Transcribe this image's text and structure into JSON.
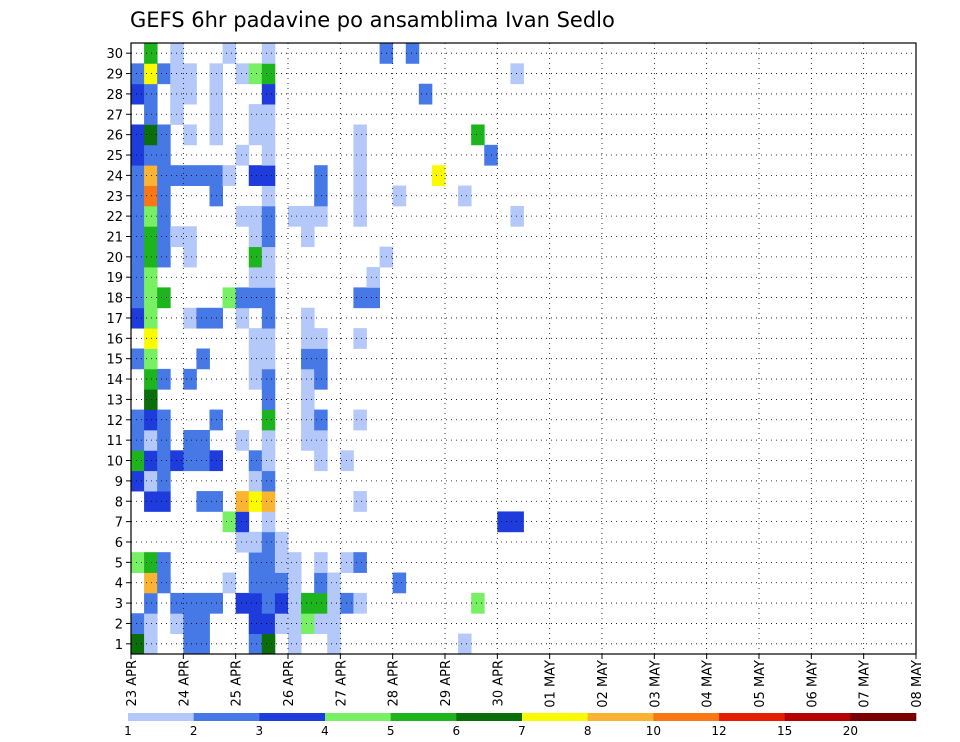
{
  "chart_data": {
    "type": "heatmap",
    "title": "GEFS 6hr padavine po ansamblima Ivan Sedlo",
    "xlabel": "",
    "ylabel": "",
    "x_tick_labels": [
      "23 APR",
      "24 APR",
      "25 APR",
      "26 APR",
      "27 APR",
      "28 APR",
      "29 APR",
      "30 APR",
      "01 MAY",
      "02 MAY",
      "03 MAY",
      "04 MAY",
      "05 MAY",
      "06 MAY",
      "07 MAY",
      "08 MAY"
    ],
    "y_tick_labels": [
      "1",
      "2",
      "3",
      "4",
      "5",
      "6",
      "7",
      "8",
      "9",
      "10",
      "11",
      "12",
      "13",
      "14",
      "15",
      "16",
      "17",
      "18",
      "19",
      "20",
      "21",
      "22",
      "23",
      "24",
      "25",
      "26",
      "27",
      "28",
      "29",
      "30"
    ],
    "x_range": [
      0,
      60
    ],
    "y_range": [
      0.5,
      30.5
    ],
    "grid": true,
    "legend": {
      "placement": "bottom",
      "labels": [
        "1",
        "2",
        "3",
        "4",
        "5",
        "6",
        "7",
        "8",
        "10",
        "12",
        "15",
        "20"
      ],
      "colors": [
        "#b4c8fa",
        "#4678e6",
        "#1e3cdc",
        "#78f064",
        "#1eb41e",
        "#0a6e0a",
        "#fafa00",
        "#fab432",
        "#fa7814",
        "#e61e00",
        "#b40000",
        "#780000"
      ]
    },
    "colors": [
      "#b4c8fa",
      "#4678e6",
      "#1e3cdc",
      "#78f064",
      "#1eb41e",
      "#0a6e0a",
      "#fafa00",
      "#fab432",
      "#fa7814",
      "#e61e00",
      "#b40000",
      "#780000"
    ],
    "cells": [
      [
        1,
        1,
        5
      ],
      [
        1,
        2,
        1
      ],
      [
        1,
        5,
        3
      ],
      [
        1,
        9,
        2
      ],
      [
        1,
        10,
        4
      ],
      [
        1,
        11,
        1
      ],
      [
        1,
        12,
        1
      ],
      [
        1,
        15,
        1
      ],
      [
        1,
        17,
        2
      ],
      [
        1,
        18,
        1
      ],
      [
        1,
        19,
        1
      ],
      [
        1,
        20,
        1
      ],
      [
        1,
        21,
        1
      ],
      [
        1,
        22,
        1
      ],
      [
        1,
        23,
        1
      ],
      [
        1,
        24,
        1
      ],
      [
        1,
        25,
        2
      ],
      [
        1,
        26,
        2
      ],
      [
        1,
        28,
        2
      ],
      [
        1,
        29,
        1
      ],
      [
        2,
        1,
        0
      ],
      [
        2,
        2,
        0
      ],
      [
        2,
        3,
        1
      ],
      [
        2,
        4,
        7
      ],
      [
        2,
        5,
        4
      ],
      [
        2,
        8,
        2
      ],
      [
        2,
        9,
        0
      ],
      [
        2,
        10,
        2
      ],
      [
        2,
        11,
        0
      ],
      [
        2,
        12,
        2
      ],
      [
        2,
        13,
        5
      ],
      [
        2,
        14,
        4
      ],
      [
        2,
        15,
        3
      ],
      [
        2,
        16,
        6
      ],
      [
        2,
        17,
        3
      ],
      [
        2,
        18,
        3
      ],
      [
        2,
        19,
        3
      ],
      [
        2,
        20,
        4
      ],
      [
        2,
        21,
        4
      ],
      [
        2,
        22,
        3
      ],
      [
        2,
        23,
        8
      ],
      [
        2,
        24,
        7
      ],
      [
        2,
        25,
        1
      ],
      [
        2,
        26,
        5
      ],
      [
        2,
        27,
        1
      ],
      [
        2,
        28,
        1
      ],
      [
        2,
        29,
        6
      ],
      [
        2,
        30,
        4
      ],
      [
        3,
        4,
        1
      ],
      [
        3,
        5,
        1
      ],
      [
        3,
        8,
        2
      ],
      [
        3,
        9,
        1
      ],
      [
        3,
        10,
        1
      ],
      [
        3,
        11,
        1
      ],
      [
        3,
        12,
        1
      ],
      [
        3,
        14,
        1
      ],
      [
        3,
        18,
        4
      ],
      [
        3,
        20,
        1
      ],
      [
        3,
        21,
        1
      ],
      [
        3,
        22,
        1
      ],
      [
        3,
        23,
        1
      ],
      [
        3,
        24,
        1
      ],
      [
        3,
        25,
        1
      ],
      [
        3,
        26,
        1
      ],
      [
        3,
        29,
        1
      ],
      [
        4,
        2,
        0
      ],
      [
        4,
        3,
        1
      ],
      [
        4,
        10,
        2
      ],
      [
        4,
        21,
        0
      ],
      [
        4,
        24,
        1
      ],
      [
        4,
        27,
        0
      ],
      [
        4,
        28,
        0
      ],
      [
        4,
        29,
        0
      ],
      [
        4,
        30,
        0
      ],
      [
        5,
        1,
        1
      ],
      [
        5,
        2,
        1
      ],
      [
        5,
        3,
        1
      ],
      [
        5,
        10,
        1
      ],
      [
        5,
        11,
        1
      ],
      [
        5,
        14,
        1
      ],
      [
        5,
        17,
        0
      ],
      [
        5,
        20,
        0
      ],
      [
        5,
        21,
        0
      ],
      [
        5,
        24,
        1
      ],
      [
        5,
        26,
        0
      ],
      [
        5,
        28,
        0
      ],
      [
        5,
        29,
        0
      ],
      [
        6,
        1,
        1
      ],
      [
        6,
        2,
        1
      ],
      [
        6,
        3,
        1
      ],
      [
        6,
        8,
        1
      ],
      [
        6,
        10,
        1
      ],
      [
        6,
        11,
        1
      ],
      [
        6,
        15,
        1
      ],
      [
        6,
        17,
        1
      ],
      [
        6,
        24,
        1
      ],
      [
        7,
        3,
        1
      ],
      [
        7,
        8,
        1
      ],
      [
        7,
        10,
        2
      ],
      [
        7,
        12,
        1
      ],
      [
        7,
        17,
        1
      ],
      [
        7,
        23,
        1
      ],
      [
        7,
        24,
        1
      ],
      [
        7,
        26,
        0
      ],
      [
        7,
        27,
        0
      ],
      [
        7,
        28,
        0
      ],
      [
        7,
        29,
        0
      ],
      [
        8,
        4,
        0
      ],
      [
        8,
        7,
        3
      ],
      [
        8,
        18,
        3
      ],
      [
        8,
        24,
        0
      ],
      [
        8,
        30,
        0
      ],
      [
        9,
        3,
        2
      ],
      [
        9,
        6,
        0
      ],
      [
        9,
        7,
        2
      ],
      [
        9,
        8,
        7
      ],
      [
        9,
        11,
        0
      ],
      [
        9,
        17,
        0
      ],
      [
        9,
        18,
        1
      ],
      [
        9,
        22,
        0
      ],
      [
        9,
        25,
        0
      ],
      [
        9,
        29,
        0
      ],
      [
        10,
        1,
        1
      ],
      [
        10,
        2,
        2
      ],
      [
        10,
        3,
        2
      ],
      [
        10,
        4,
        1
      ],
      [
        10,
        5,
        1
      ],
      [
        10,
        6,
        0
      ],
      [
        10,
        8,
        6
      ],
      [
        10,
        9,
        0
      ],
      [
        10,
        10,
        1
      ],
      [
        10,
        14,
        0
      ],
      [
        10,
        15,
        0
      ],
      [
        10,
        16,
        0
      ],
      [
        10,
        18,
        1
      ],
      [
        10,
        19,
        0
      ],
      [
        10,
        20,
        4
      ],
      [
        10,
        21,
        0
      ],
      [
        10,
        22,
        0
      ],
      [
        10,
        24,
        2
      ],
      [
        10,
        26,
        0
      ],
      [
        10,
        27,
        0
      ],
      [
        10,
        29,
        3
      ],
      [
        11,
        1,
        5
      ],
      [
        11,
        2,
        2
      ],
      [
        11,
        3,
        1
      ],
      [
        11,
        4,
        1
      ],
      [
        11,
        5,
        1
      ],
      [
        11,
        6,
        1
      ],
      [
        11,
        7,
        0
      ],
      [
        11,
        8,
        7
      ],
      [
        11,
        9,
        1
      ],
      [
        11,
        10,
        0
      ],
      [
        11,
        11,
        0
      ],
      [
        11,
        12,
        4
      ],
      [
        11,
        13,
        1
      ],
      [
        11,
        14,
        1
      ],
      [
        11,
        15,
        0
      ],
      [
        11,
        16,
        0
      ],
      [
        11,
        17,
        1
      ],
      [
        11,
        18,
        1
      ],
      [
        11,
        19,
        0
      ],
      [
        11,
        20,
        0
      ],
      [
        11,
        21,
        1
      ],
      [
        11,
        22,
        1
      ],
      [
        11,
        23,
        0
      ],
      [
        11,
        24,
        2
      ],
      [
        11,
        25,
        0
      ],
      [
        11,
        26,
        0
      ],
      [
        11,
        27,
        0
      ],
      [
        11,
        28,
        2
      ],
      [
        11,
        29,
        4
      ],
      [
        11,
        30,
        0
      ],
      [
        12,
        2,
        0
      ],
      [
        12,
        3,
        2
      ],
      [
        12,
        4,
        1
      ],
      [
        12,
        5,
        0
      ],
      [
        12,
        6,
        0
      ],
      [
        13,
        1,
        0
      ],
      [
        13,
        2,
        0
      ],
      [
        13,
        3,
        0
      ],
      [
        13,
        4,
        0
      ],
      [
        13,
        5,
        0
      ],
      [
        13,
        22,
        0
      ],
      [
        14,
        2,
        3
      ],
      [
        14,
        3,
        4
      ],
      [
        14,
        11,
        0
      ],
      [
        14,
        12,
        0
      ],
      [
        14,
        13,
        0
      ],
      [
        14,
        14,
        0
      ],
      [
        14,
        15,
        1
      ],
      [
        14,
        16,
        0
      ],
      [
        14,
        17,
        0
      ],
      [
        14,
        21,
        0
      ],
      [
        14,
        22,
        0
      ],
      [
        15,
        2,
        0
      ],
      [
        15,
        3,
        4
      ],
      [
        15,
        4,
        1
      ],
      [
        15,
        5,
        0
      ],
      [
        15,
        10,
        0
      ],
      [
        15,
        11,
        0
      ],
      [
        15,
        12,
        1
      ],
      [
        15,
        14,
        1
      ],
      [
        15,
        15,
        1
      ],
      [
        15,
        16,
        0
      ],
      [
        15,
        22,
        0
      ],
      [
        15,
        23,
        1
      ],
      [
        15,
        24,
        1
      ],
      [
        16,
        1,
        0
      ],
      [
        16,
        2,
        0
      ],
      [
        16,
        3,
        0
      ],
      [
        16,
        4,
        0
      ],
      [
        17,
        3,
        1
      ],
      [
        17,
        5,
        0
      ],
      [
        17,
        10,
        0
      ],
      [
        18,
        3,
        0
      ],
      [
        18,
        5,
        1
      ],
      [
        18,
        8,
        0
      ],
      [
        18,
        12,
        0
      ],
      [
        18,
        16,
        0
      ],
      [
        18,
        18,
        1
      ],
      [
        18,
        22,
        0
      ],
      [
        18,
        23,
        0
      ],
      [
        18,
        24,
        0
      ],
      [
        18,
        25,
        0
      ],
      [
        18,
        26,
        0
      ],
      [
        19,
        18,
        1
      ],
      [
        19,
        19,
        0
      ],
      [
        20,
        20,
        0
      ],
      [
        20,
        30,
        1
      ],
      [
        21,
        4,
        1
      ],
      [
        21,
        23,
        0
      ],
      [
        22,
        30,
        1
      ],
      [
        23,
        28,
        1
      ],
      [
        24,
        24,
        6
      ],
      [
        26,
        1,
        0
      ],
      [
        26,
        23,
        0
      ],
      [
        27,
        3,
        3
      ],
      [
        27,
        26,
        4
      ],
      [
        28,
        25,
        1
      ],
      [
        29,
        7,
        2
      ],
      [
        30,
        7,
        2
      ],
      [
        30,
        29,
        0
      ],
      [
        30,
        22,
        0
      ]
    ]
  }
}
